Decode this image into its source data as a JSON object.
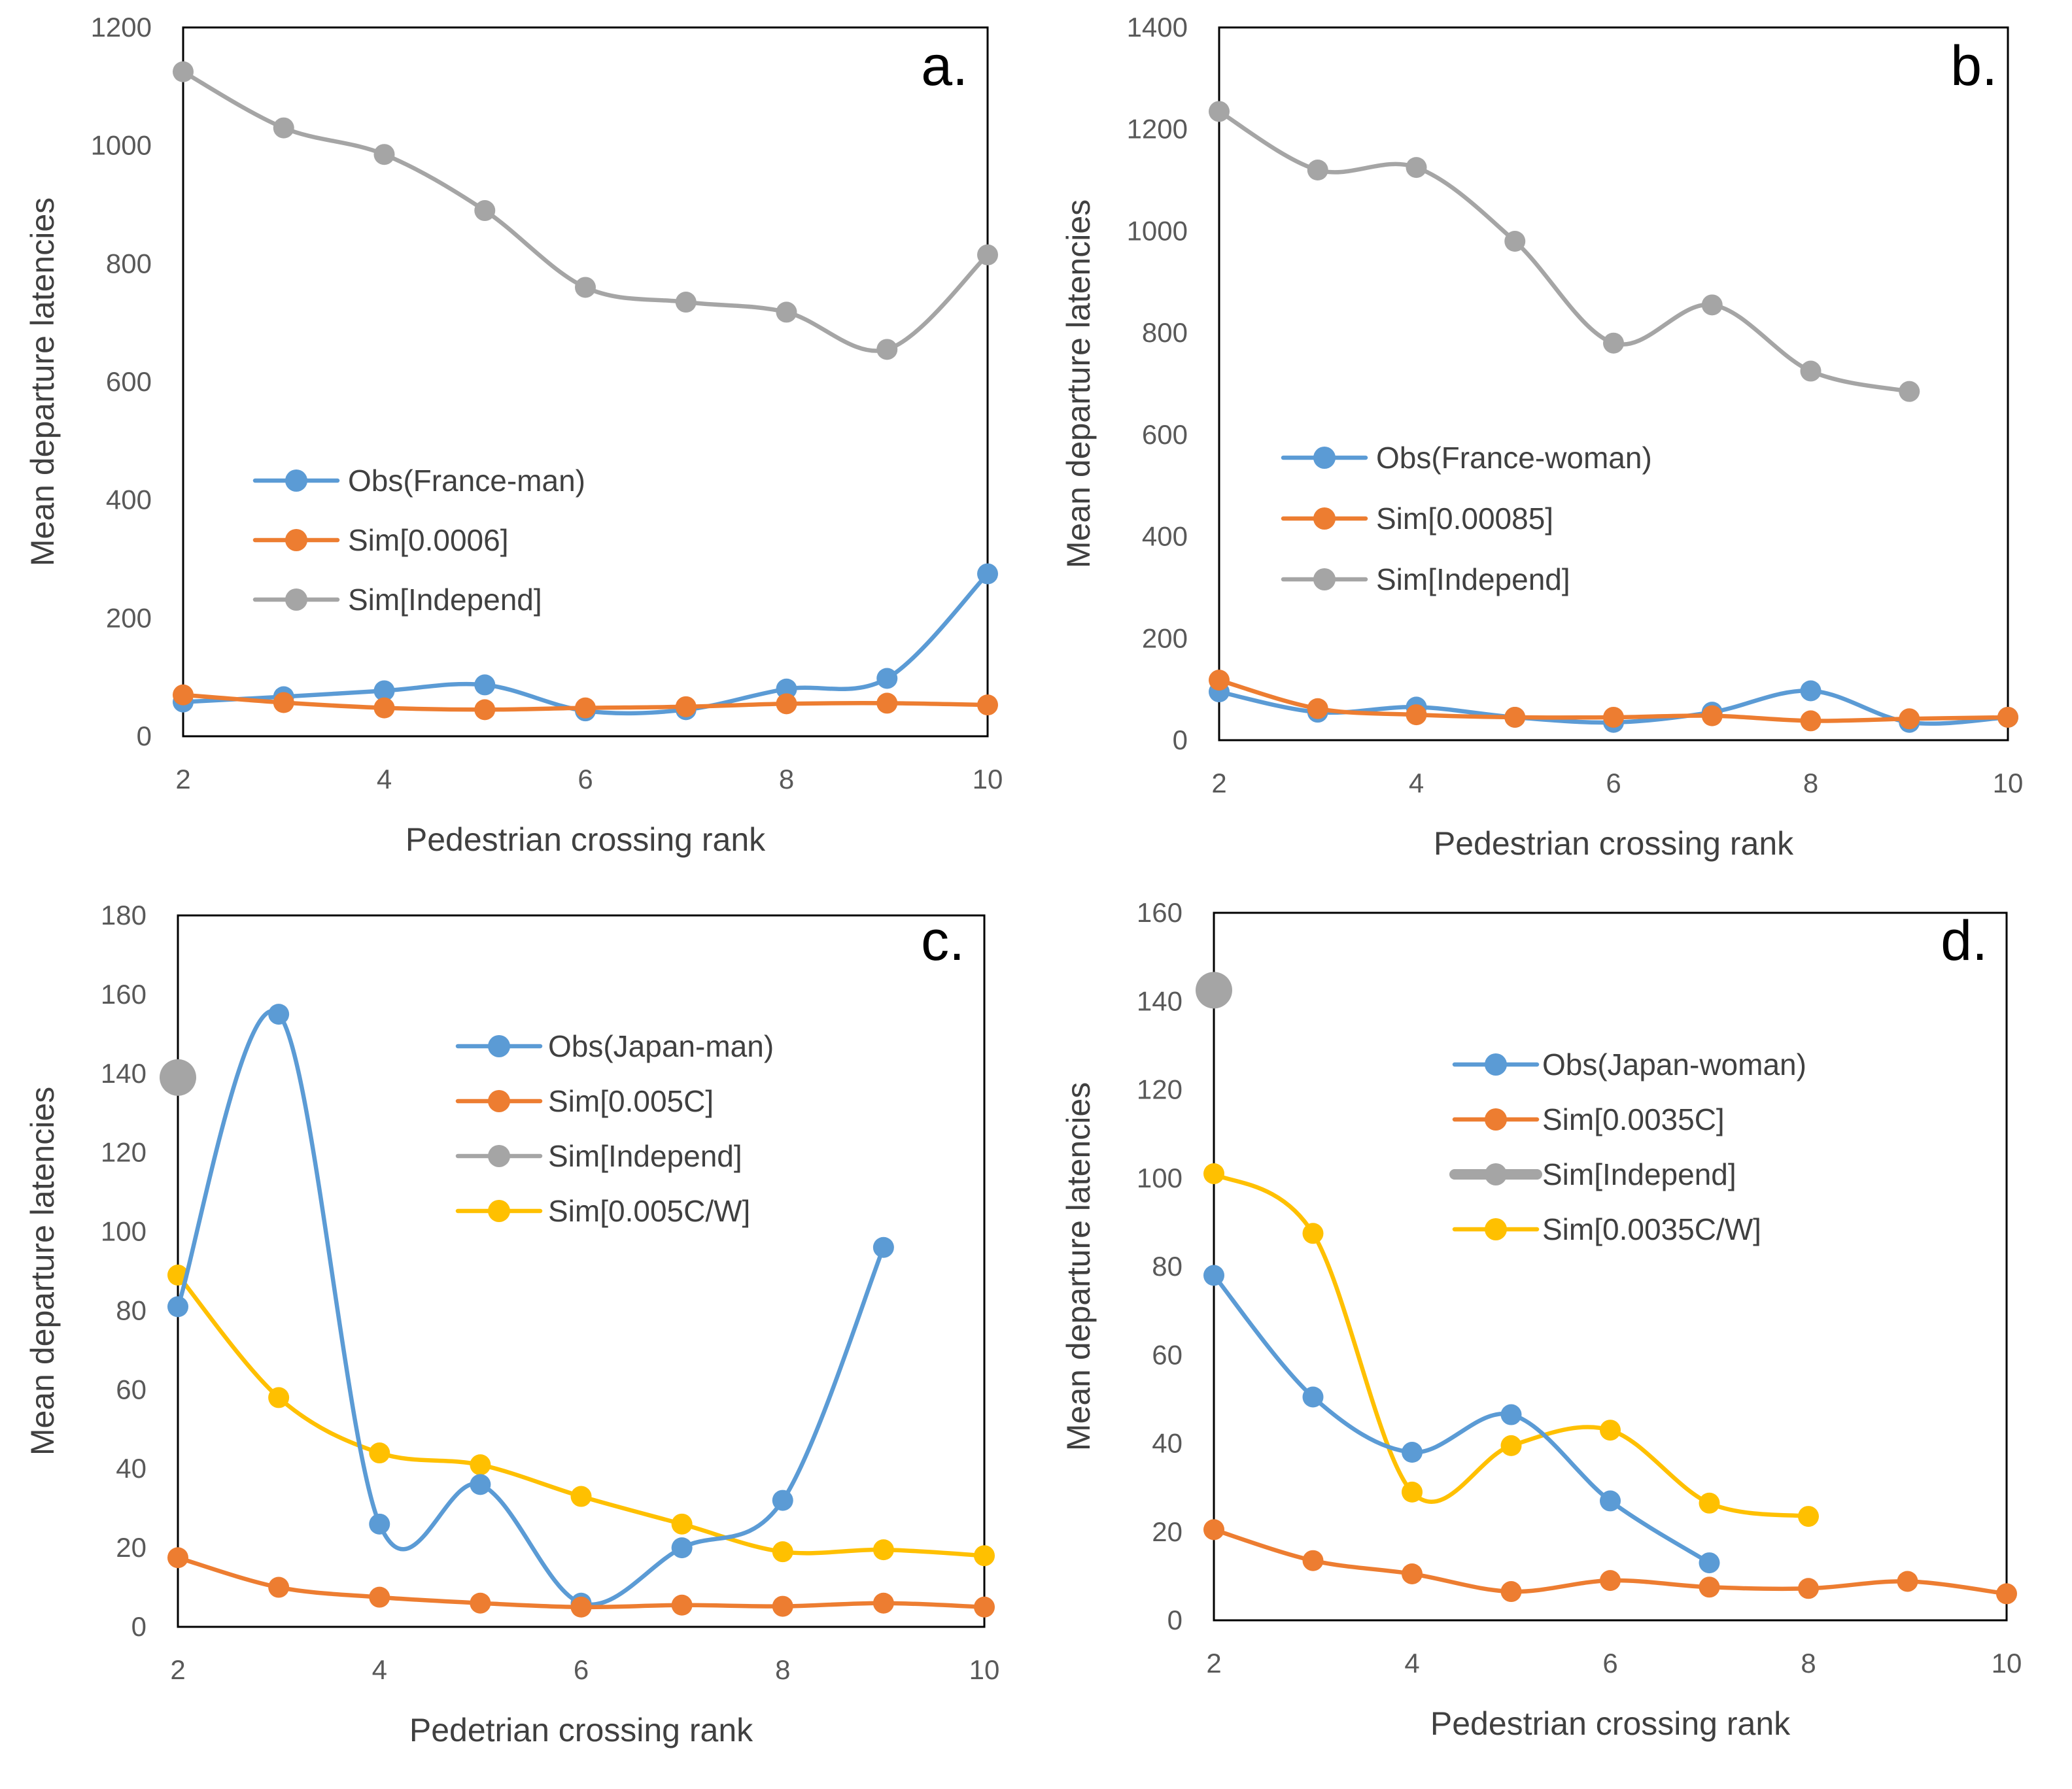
{
  "colors": {
    "blue": "#5B9BD5",
    "orange": "#ED7D31",
    "gray": "#A5A5A5",
    "yellow": "#FFC000",
    "axis": "#000000",
    "text": "#595959"
  },
  "chart_data": [
    {
      "type": "line",
      "panel_label": "a.",
      "xlabel": "Pedestrian crossing rank",
      "ylabel": "Mean departure latencies",
      "xlim": [
        2,
        10
      ],
      "ylim": [
        0,
        1200
      ],
      "xticks": [
        "2",
        "4",
        "6",
        "8",
        "10"
      ],
      "yticks": [
        "0",
        "200",
        "400",
        "600",
        "800",
        "1000",
        "1200"
      ],
      "legend_position": "center-left",
      "series": [
        {
          "name": "Obs(France-man)",
          "color": "#5B9BD5",
          "x": [
            2,
            3,
            4,
            5,
            6,
            7,
            8,
            9,
            10
          ],
          "y": [
            58,
            67,
            77,
            87,
            43,
            45,
            80,
            98,
            275
          ]
        },
        {
          "name": "Sim[0.0006]",
          "color": "#ED7D31",
          "x": [
            2,
            3,
            4,
            5,
            6,
            7,
            8,
            9,
            10
          ],
          "y": [
            70,
            57,
            48,
            45,
            48,
            50,
            55,
            56,
            53
          ]
        },
        {
          "name": "Sim[Independ]",
          "color": "#A5A5A5",
          "x": [
            2,
            3,
            4,
            5,
            6,
            7,
            8,
            9,
            10
          ],
          "y": [
            1125,
            1030,
            985,
            890,
            760,
            735,
            718,
            655,
            815
          ]
        }
      ]
    },
    {
      "type": "line",
      "panel_label": "b.",
      "xlabel": "Pedestrian crossing rank",
      "ylabel": "Mean departure latencies",
      "xlim": [
        2,
        10
      ],
      "ylim": [
        0,
        1400
      ],
      "xticks": [
        "2",
        "4",
        "6",
        "8",
        "10"
      ],
      "yticks": [
        "0",
        "200",
        "400",
        "600",
        "800",
        "1000",
        "1200",
        "1400"
      ],
      "legend_position": "center-left",
      "series": [
        {
          "name": "Obs(France-woman)",
          "color": "#5B9BD5",
          "x": [
            2,
            3,
            4,
            5,
            6,
            7,
            8,
            9,
            10
          ],
          "y": [
            95,
            55,
            65,
            45,
            35,
            55,
            97,
            35,
            45
          ]
        },
        {
          "name": "Sim[0.00085]",
          "color": "#ED7D31",
          "x": [
            2,
            3,
            4,
            5,
            6,
            7,
            8,
            9,
            10
          ],
          "y": [
            118,
            62,
            50,
            45,
            45,
            48,
            38,
            42,
            45
          ]
        },
        {
          "name": "Sim[Independ]",
          "color": "#A5A5A5",
          "x": [
            2,
            3,
            4,
            5,
            6,
            7,
            8,
            9
          ],
          "y": [
            1235,
            1120,
            1125,
            980,
            780,
            855,
            725,
            685
          ]
        }
      ]
    },
    {
      "type": "line",
      "panel_label": "c.",
      "xlabel": "Pedetrian crossing rank",
      "ylabel": "Mean departure latencies",
      "xlim": [
        2,
        10
      ],
      "ylim": [
        0,
        180
      ],
      "xticks": [
        "2",
        "4",
        "6",
        "8",
        "10"
      ],
      "yticks": [
        "0",
        "20",
        "40",
        "60",
        "80",
        "100",
        "120",
        "140",
        "160",
        "180"
      ],
      "legend_position": "top-center",
      "series": [
        {
          "name": "Obs(Japan-man)",
          "color": "#5B9BD5",
          "x": [
            2,
            3,
            4,
            5,
            6,
            7,
            8,
            9
          ],
          "y": [
            81,
            155,
            26,
            36,
            6,
            20,
            32,
            96
          ]
        },
        {
          "name": "Sim[0.005C]",
          "color": "#ED7D31",
          "x": [
            2,
            3,
            4,
            5,
            6,
            7,
            8,
            9,
            10
          ],
          "y": [
            17.5,
            10,
            7.5,
            6,
            5,
            5.5,
            5.2,
            6,
            5
          ]
        },
        {
          "name": "Sim[Independ]",
          "color": "#A5A5A5",
          "x": [
            2
          ],
          "y": [
            139
          ]
        },
        {
          "name": "Sim[0.005C/W]",
          "color": "#FFC000",
          "x": [
            2,
            3,
            4,
            5,
            6,
            7,
            8,
            9,
            10
          ],
          "y": [
            89,
            58,
            44,
            41,
            33,
            26,
            19,
            19.5,
            18
          ]
        }
      ]
    },
    {
      "type": "line",
      "panel_label": "d.",
      "xlabel": "Pedestrian crossing rank",
      "ylabel": "Mean departure latencies",
      "xlim": [
        2,
        10
      ],
      "ylim": [
        0,
        160
      ],
      "xticks": [
        "2",
        "4",
        "6",
        "8",
        "10"
      ],
      "yticks": [
        "0",
        "20",
        "40",
        "60",
        "80",
        "100",
        "120",
        "140",
        "160"
      ],
      "legend_position": "top-center",
      "series": [
        {
          "name": "Obs(Japan-woman)",
          "color": "#5B9BD5",
          "x": [
            2,
            3,
            4,
            5,
            6,
            7
          ],
          "y": [
            78,
            50.5,
            38,
            46.5,
            27,
            13
          ]
        },
        {
          "name": "Sim[0.0035C]",
          "color": "#ED7D31",
          "x": [
            2,
            3,
            4,
            5,
            6,
            7,
            8,
            9,
            10
          ],
          "y": [
            20.5,
            13.5,
            10.5,
            6.5,
            9,
            7.5,
            7.2,
            8.8,
            6
          ]
        },
        {
          "name": "Sim[Independ]",
          "color": "#A5A5A5",
          "x": [
            2
          ],
          "y": [
            142.5
          ]
        },
        {
          "name": "Sim[0.0035C/W]",
          "color": "#FFC000",
          "x": [
            2,
            3,
            4,
            5,
            6,
            7,
            8
          ],
          "y": [
            101,
            87.5,
            29,
            39.5,
            43,
            26.5,
            23.5
          ]
        }
      ]
    }
  ]
}
